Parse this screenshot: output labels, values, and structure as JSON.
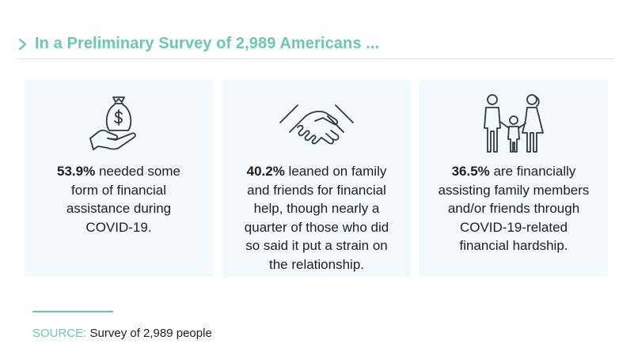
{
  "header": {
    "title": "In a Preliminary Survey of 2,989 Americans ...",
    "chevron_icon": "chevron-right-icon",
    "accent_color": "#6dc7b0"
  },
  "cards": [
    {
      "icon": "money-bag-in-hand-icon",
      "stat": "53.9%",
      "line1": " needed some",
      "line2": "form of financial",
      "line3": "assistance during",
      "line4": "COVID-19."
    },
    {
      "icon": "handshake-icon",
      "stat": "40.2%",
      "line1": " leaned on family",
      "line2": "and friends for financial",
      "line3": "help, though nearly a",
      "line4": "quarter of those who did",
      "line5": "so said it put a strain on",
      "line6": "the relationship."
    },
    {
      "icon": "family-icon",
      "stat": "36.5%",
      "line1": " are financially",
      "line2": "assisting family members",
      "line3": "and/or friends through",
      "line4": "COVID-19-related",
      "line5": "financial hardship."
    }
  ],
  "source": {
    "label": "SOURCE:",
    "text": " Survey of 2,989 people"
  },
  "colors": {
    "card_bg": "#f2f8fc",
    "text": "#1e1e1e",
    "icon_stroke": "#2d3a46"
  }
}
